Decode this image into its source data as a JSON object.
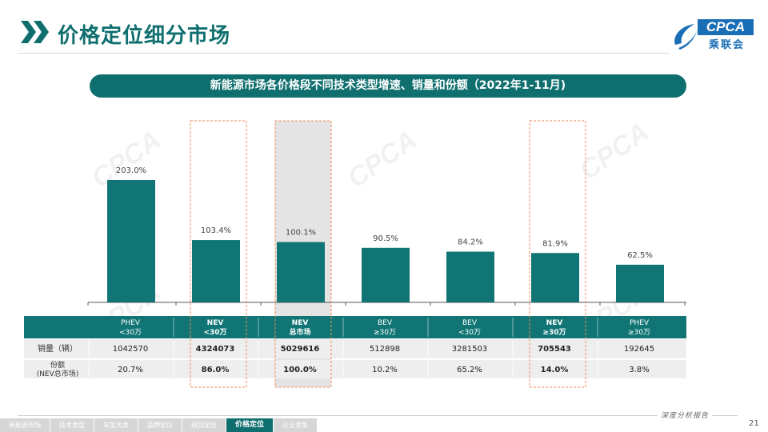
{
  "page": {
    "title": "价格定位细分市场",
    "page_number": "21",
    "footer_brand": "深度分析报告"
  },
  "logo": {
    "text": "CPCA",
    "cn": "乘联会"
  },
  "banner": {
    "text": "新能源市场各价格段不同技术类型增速、销量和份额（2022年1-11月)"
  },
  "chart_data": {
    "type": "bar",
    "title": "新能源市场各价格段不同技术类型增速、销量和份额（2022年1-11月)",
    "categories": [
      {
        "line1": "PHEV",
        "line2": "<30万",
        "bold": false
      },
      {
        "line1": "NEV",
        "line2": "<30万",
        "bold": true
      },
      {
        "line1": "NEV",
        "line2": "总市场",
        "bold": true
      },
      {
        "line1": "BEV",
        "line2": "≥30万",
        "bold": false
      },
      {
        "line1": "BEV",
        "line2": "<30万",
        "bold": false
      },
      {
        "line1": "NEV",
        "line2": "≥30万",
        "bold": true
      },
      {
        "line1": "PHEV",
        "line2": "≥30万",
        "bold": false
      }
    ],
    "values": [
      203.0,
      103.4,
      100.1,
      90.5,
      84.2,
      81.9,
      62.5
    ],
    "labels": [
      "203.0%",
      "103.4%",
      "100.1%",
      "90.5%",
      "84.2%",
      "81.9%",
      "62.5%"
    ],
    "ylim": [
      0,
      250
    ],
    "highlight_dashed": [
      1,
      5
    ],
    "highlight_shaded": [
      2
    ],
    "bar_color": "#117575",
    "table": {
      "rows": [
        {
          "label": "销量（辆）",
          "cells": [
            "1042570",
            "4324073",
            "5029616",
            "512898",
            "3281503",
            "705543",
            "192645"
          ]
        },
        {
          "label": "份额\n(NEV总市场)",
          "cells": [
            "20.7%",
            "86.0%",
            "100.0%",
            "10.2%",
            "65.2%",
            "14.0%",
            "3.8%"
          ]
        }
      ]
    }
  },
  "footer_nav": [
    {
      "label": "新能源市场",
      "active": false
    },
    {
      "label": "技术类型",
      "active": false
    },
    {
      "label": "车型大类",
      "active": false
    },
    {
      "label": "品牌定位",
      "active": false
    },
    {
      "label": "级别定位",
      "active": false
    },
    {
      "label": "价格定位",
      "active": true
    },
    {
      "label": "企业竞争",
      "active": false
    }
  ],
  "colors": {
    "accent": "#0f6e6e",
    "header_fill": "#117575",
    "row_fill": "#eeeeee",
    "dashed": "#f08a5a",
    "shade": "#e4e4e4"
  }
}
